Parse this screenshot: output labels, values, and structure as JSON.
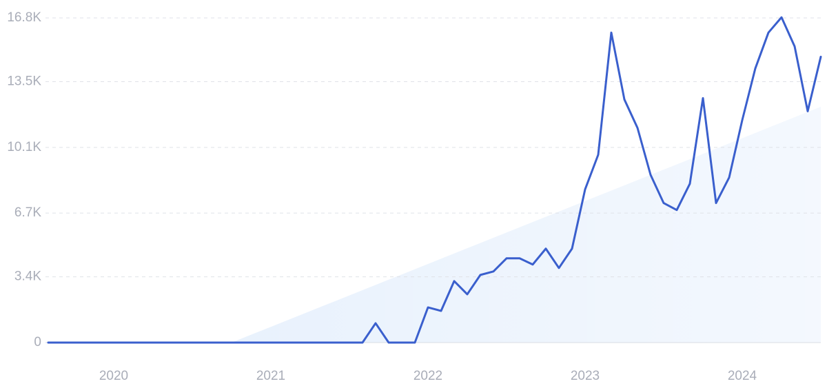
{
  "chart_data": {
    "type": "line",
    "categories": [
      null,
      null,
      null,
      null,
      null,
      "2020",
      null,
      null,
      null,
      null,
      null,
      null,
      null,
      null,
      null,
      null,
      null,
      "2021",
      null,
      null,
      null,
      null,
      null,
      null,
      null,
      null,
      null,
      null,
      null,
      "2022",
      null,
      null,
      null,
      null,
      null,
      null,
      null,
      null,
      null,
      null,
      null,
      "2023",
      null,
      null,
      null,
      null,
      null,
      null,
      null,
      null,
      null,
      null,
      null,
      "2024",
      null,
      null,
      null,
      null,
      null,
      null
    ],
    "values": [
      0,
      0,
      0,
      0,
      0,
      0,
      0,
      0,
      0,
      0,
      0,
      0,
      0,
      0,
      0,
      0,
      0,
      0,
      0,
      0,
      0,
      0,
      0,
      0,
      0,
      1000,
      0,
      0,
      0,
      1820,
      1640,
      3180,
      2500,
      3500,
      3680,
      4360,
      4360,
      4040,
      4860,
      3860,
      4860,
      7930,
      9720,
      16040,
      12580,
      11110,
      8680,
      7220,
      6860,
      8220,
      12650,
      7220,
      8540,
      11510,
      14190,
      16040,
      16830,
      15330,
      11970,
      14790
    ],
    "color": "#3a5fcd",
    "trend": {
      "color": "#e3eefc",
      "values": [
        null,
        null,
        null,
        null,
        null,
        null,
        null,
        null,
        null,
        null,
        null,
        null,
        null,
        null,
        0,
        271,
        542,
        813,
        1084,
        1356,
        1627,
        1898,
        2169,
        2440,
        2711,
        2982,
        3253,
        3524,
        3796,
        4067,
        4338,
        4609,
        4880,
        5151,
        5422,
        5693,
        5964,
        6236,
        6507,
        6778,
        7049,
        7320,
        7591,
        7862,
        8133,
        8404,
        8676,
        8947,
        9218,
        9489,
        9760,
        10031,
        10302,
        10573,
        10844,
        11116,
        11387,
        11658,
        11929,
        12200
      ]
    },
    "ylim": [
      0,
      16800
    ],
    "yticks": [
      0,
      {
        "value": 3400,
        "label": "3.4K"
      },
      {
        "value": 6700,
        "label": "6.7K"
      },
      {
        "value": 10100,
        "label": "10.1K"
      },
      {
        "value": 13500,
        "label": "13.5K"
      },
      {
        "value": 16800,
        "label": "16.8K"
      }
    ],
    "grid": true
  }
}
